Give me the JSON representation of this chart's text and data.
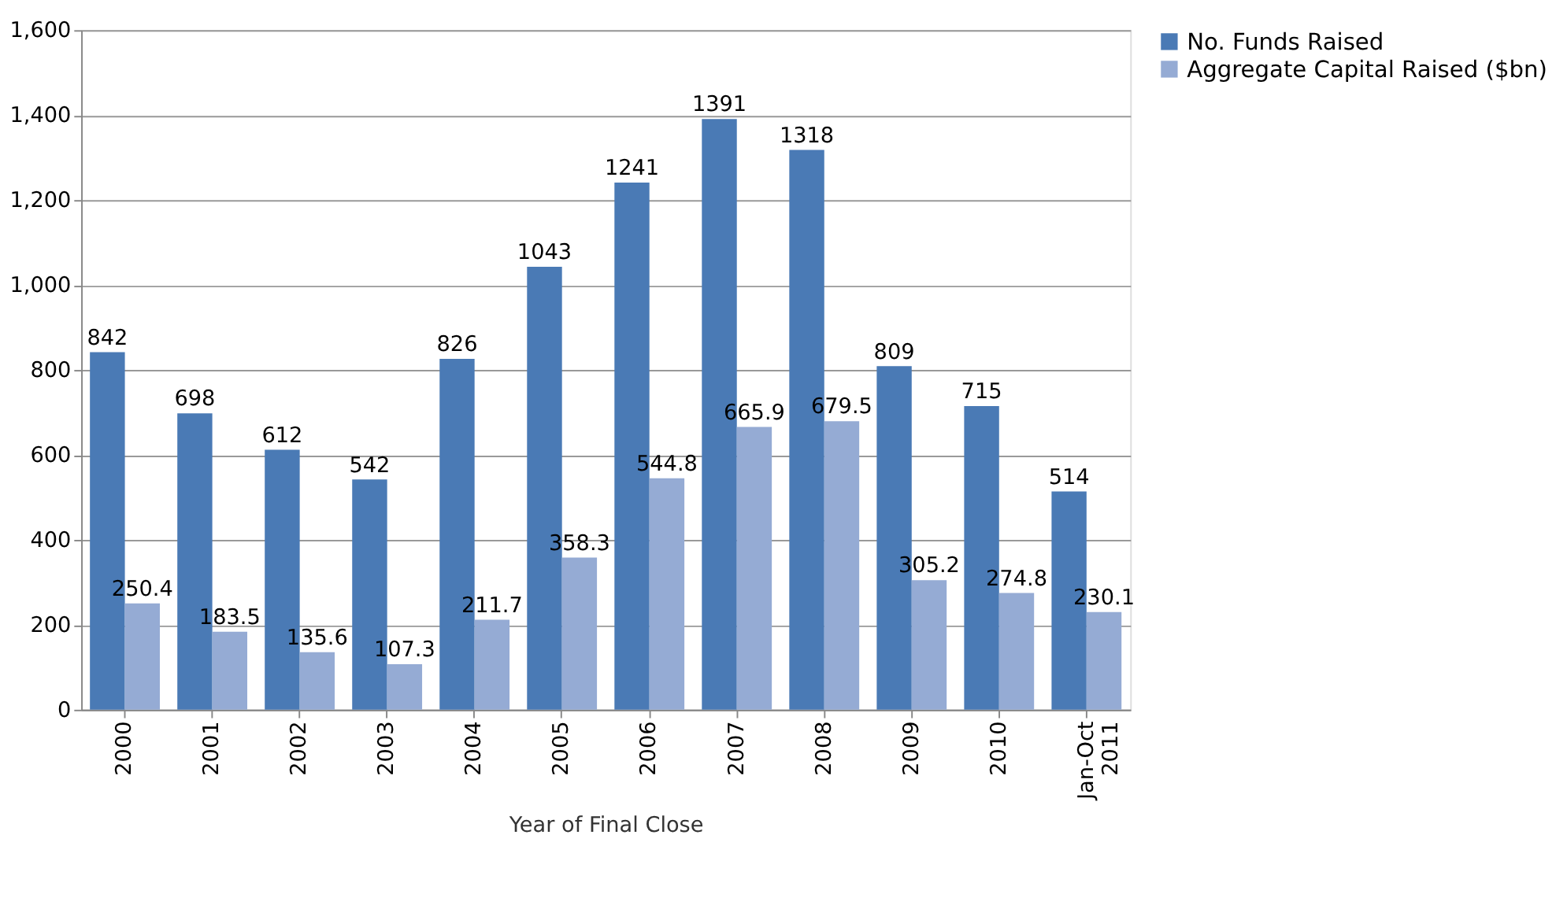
{
  "chart_data": {
    "type": "bar",
    "xlabel": "Year of Final Close",
    "categories": [
      "2000",
      "2001",
      "2002",
      "2003",
      "2004",
      "2005",
      "2006",
      "2007",
      "2008",
      "2009",
      "2010",
      "Jan-Oct 2011"
    ],
    "series": [
      {
        "name": "No. Funds Raised",
        "color": "#4a7ab5",
        "values": [
          842,
          698,
          612,
          542,
          826,
          1043,
          1241,
          1391,
          1318,
          809,
          715,
          514
        ]
      },
      {
        "name": "Aggregate Capital Raised ($bn)",
        "color": "#95abd4",
        "values": [
          250.4,
          183.5,
          135.6,
          107.3,
          211.7,
          358.3,
          544.8,
          665.9,
          679.5,
          305.2,
          274.8,
          230.1
        ]
      }
    ],
    "ylim": [
      0,
      1600
    ],
    "yticks": [
      {
        "value": 0,
        "label": "0"
      },
      {
        "value": 200,
        "label": "200"
      },
      {
        "value": 400,
        "label": "400"
      },
      {
        "value": 600,
        "label": "600"
      },
      {
        "value": 800,
        "label": "800"
      },
      {
        "value": 1000,
        "label": "1,000"
      },
      {
        "value": 1200,
        "label": "1,200"
      },
      {
        "value": 1400,
        "label": "1,400"
      },
      {
        "value": 1600,
        "label": "1,600"
      }
    ],
    "grid": "y",
    "legend": "right",
    "data_labels": true
  }
}
